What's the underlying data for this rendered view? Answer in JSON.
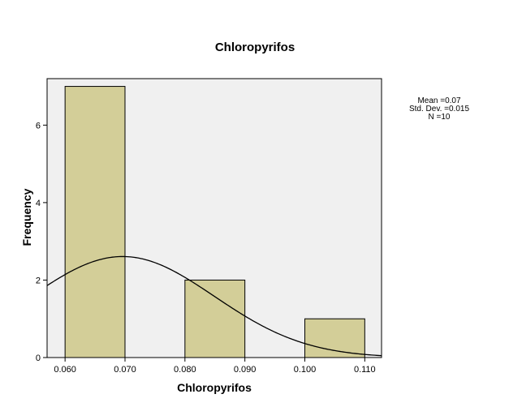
{
  "chart_data": {
    "type": "bar",
    "title": "Chloropyrifos",
    "xlabel": "Chloropyrifos",
    "ylabel": "Frequency",
    "xlim": [
      0.057,
      0.1128
    ],
    "ylim": [
      0,
      7.2
    ],
    "x_ticks": [
      "0.060",
      "0.070",
      "0.080",
      "0.090",
      "0.100",
      "0.110"
    ],
    "y_ticks": [
      "0",
      "2",
      "4",
      "6"
    ],
    "bins": [
      {
        "start": 0.06,
        "end": 0.07,
        "count": 7
      },
      {
        "start": 0.07,
        "end": 0.08,
        "count": 0
      },
      {
        "start": 0.08,
        "end": 0.09,
        "count": 2
      },
      {
        "start": 0.09,
        "end": 0.1,
        "count": 0
      },
      {
        "start": 0.1,
        "end": 0.11,
        "count": 1
      }
    ],
    "bar_color": "#D3CE98",
    "plot_background": "#F0F0F0",
    "normal_curve": {
      "mean": 0.0696,
      "sd": 0.0153,
      "n": 10,
      "bin_width": 0.01
    },
    "stats": {
      "mean": "Mean =0.07",
      "sd": "Std. Dev. =0.015",
      "n": "N =10"
    }
  }
}
